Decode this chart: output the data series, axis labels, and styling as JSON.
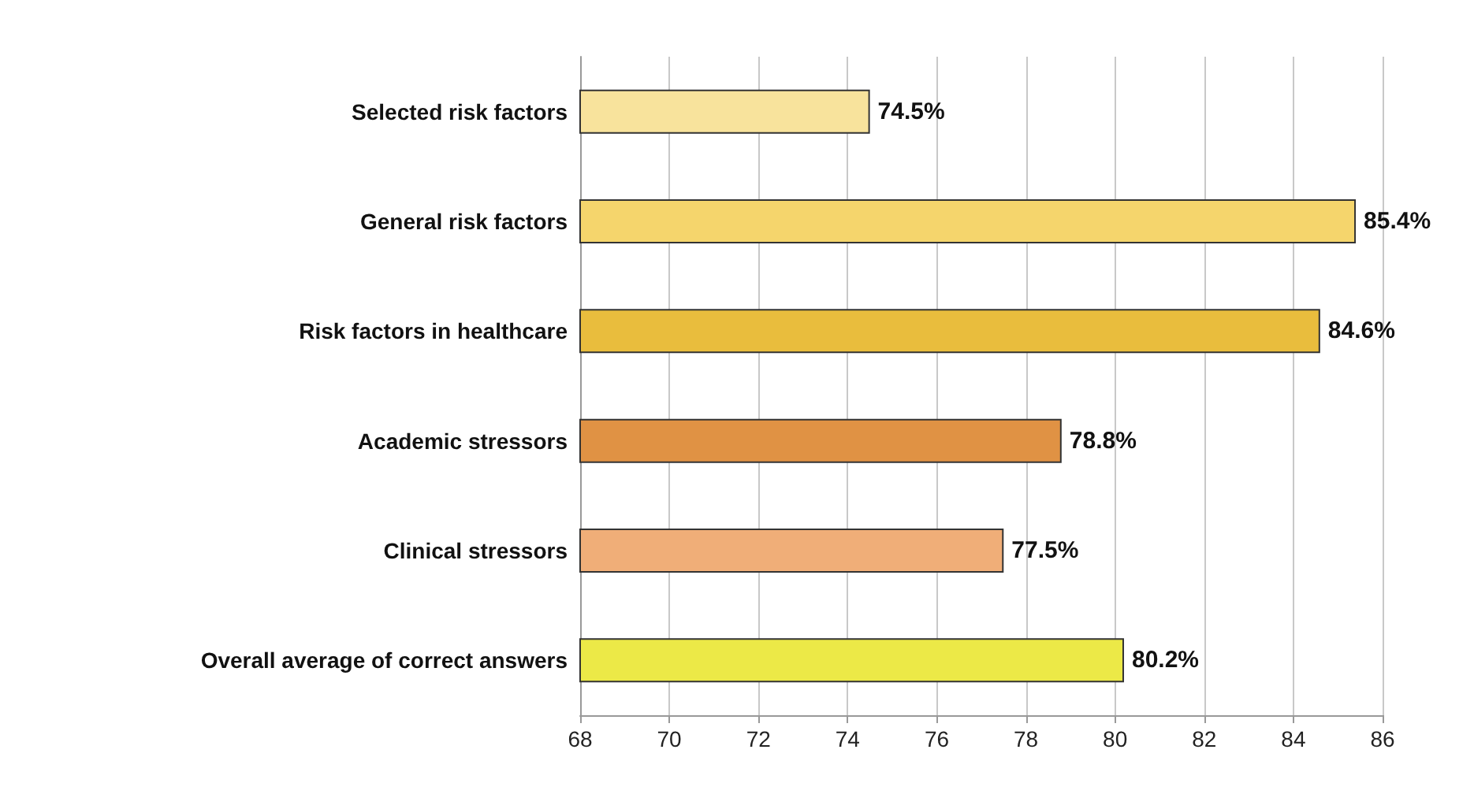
{
  "chart_data": {
    "type": "bar",
    "orientation": "horizontal",
    "categories": [
      "Selected risk factors",
      "General risk factors",
      "Risk factors in healthcare",
      "Academic stressors",
      "Clinical stressors",
      "Overall average of correct answers"
    ],
    "values": [
      74.5,
      85.4,
      84.6,
      78.8,
      77.5,
      80.2
    ],
    "value_labels": [
      "74.5%",
      "85.4%",
      "84.6%",
      "78.8%",
      "77.5%",
      "80.2%"
    ],
    "colors": [
      "#f8e39c",
      "#f5d56c",
      "#e9bd3d",
      "#e09244",
      "#f0ae78",
      "#ece947"
    ],
    "xlim": [
      68,
      86
    ],
    "xticks": [
      68,
      70,
      72,
      74,
      76,
      78,
      80,
      82,
      84,
      86
    ],
    "grid": "x"
  }
}
